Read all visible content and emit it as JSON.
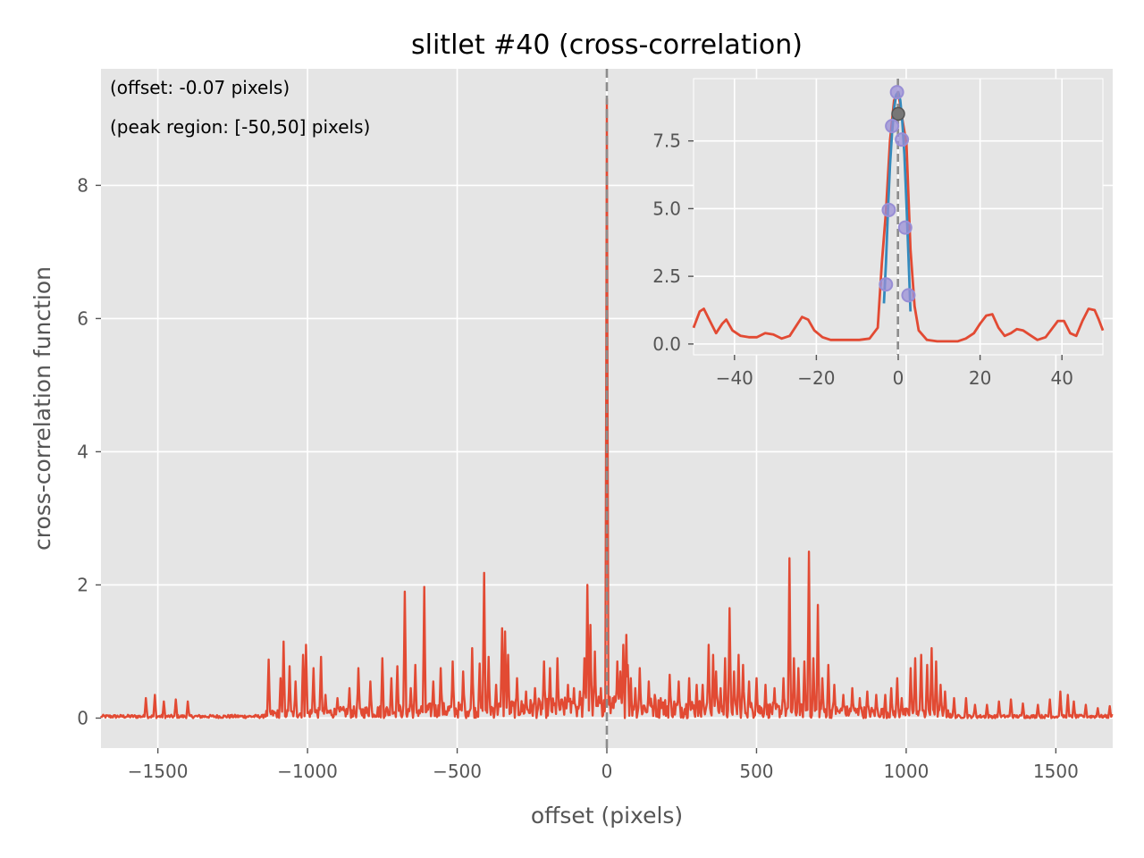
{
  "chart_data": [
    {
      "type": "line",
      "title": "slitlet #40 (cross-correlation)",
      "xlabel": "offset (pixels)",
      "ylabel": "cross-correlation function",
      "xlim": [
        -1690,
        1690
      ],
      "ylim": [
        -0.45,
        9.75
      ],
      "xticks": [
        -1500,
        -1000,
        -500,
        0,
        500,
        1000,
        1500
      ],
      "xtick_labels": [
        "−1500",
        "−1000",
        "−500",
        "0",
        "500",
        "1000",
        "1500"
      ],
      "yticks": [
        0,
        2,
        4,
        6,
        8
      ],
      "ytick_labels": [
        "0",
        "2",
        "4",
        "6",
        "8"
      ],
      "grid": true,
      "annotations": [
        "(offset: -0.07 pixels)",
        "(peak region: [-50,50] pixels)"
      ],
      "vline_x": -0.07,
      "colors": {
        "series": "#e24a33",
        "vline": "#8c8c8c",
        "background": "#e5e5e5",
        "grid": "#ffffff"
      },
      "peak": {
        "x": 0,
        "y": 9.3
      },
      "spikes": [
        [
          -1540,
          0.3
        ],
        [
          -1510,
          0.35
        ],
        [
          -1480,
          0.25
        ],
        [
          -1440,
          0.28
        ],
        [
          -1400,
          0.25
        ],
        [
          -1130,
          0.88
        ],
        [
          -1090,
          0.6
        ],
        [
          -1080,
          1.15
        ],
        [
          -1060,
          0.78
        ],
        [
          -1040,
          0.55
        ],
        [
          -1015,
          0.95
        ],
        [
          -1005,
          1.1
        ],
        [
          -980,
          0.75
        ],
        [
          -955,
          0.92
        ],
        [
          -940,
          0.35
        ],
        [
          -900,
          0.3
        ],
        [
          -860,
          0.45
        ],
        [
          -830,
          0.75
        ],
        [
          -790,
          0.55
        ],
        [
          -750,
          0.9
        ],
        [
          -720,
          0.6
        ],
        [
          -700,
          0.78
        ],
        [
          -675,
          1.9
        ],
        [
          -655,
          0.45
        ],
        [
          -640,
          0.8
        ],
        [
          -610,
          1.97
        ],
        [
          -580,
          0.55
        ],
        [
          -555,
          0.75
        ],
        [
          -515,
          0.85
        ],
        [
          -480,
          0.7
        ],
        [
          -450,
          1.05
        ],
        [
          -425,
          0.82
        ],
        [
          -410,
          2.18
        ],
        [
          -395,
          0.92
        ],
        [
          -370,
          0.5
        ],
        [
          -350,
          1.35
        ],
        [
          -340,
          1.3
        ],
        [
          -330,
          0.95
        ],
        [
          -300,
          0.6
        ],
        [
          -270,
          0.4
        ],
        [
          -240,
          0.45
        ],
        [
          -210,
          0.85
        ],
        [
          -190,
          0.75
        ],
        [
          -165,
          0.9
        ],
        [
          -130,
          0.5
        ],
        [
          -110,
          0.45
        ],
        [
          -90,
          0.4
        ],
        [
          -75,
          0.9
        ],
        [
          -65,
          2.0
        ],
        [
          -55,
          1.4
        ],
        [
          -40,
          1.0
        ],
        [
          -20,
          0.45
        ],
        [
          20,
          0.3
        ],
        [
          35,
          0.85
        ],
        [
          45,
          0.7
        ],
        [
          55,
          1.1
        ],
        [
          65,
          1.25
        ],
        [
          70,
          0.8
        ],
        [
          80,
          0.6
        ],
        [
          95,
          0.45
        ],
        [
          110,
          0.75
        ],
        [
          140,
          0.55
        ],
        [
          160,
          0.35
        ],
        [
          180,
          0.3
        ],
        [
          210,
          0.65
        ],
        [
          240,
          0.55
        ],
        [
          275,
          0.6
        ],
        [
          300,
          0.5
        ],
        [
          320,
          0.5
        ],
        [
          340,
          1.1
        ],
        [
          355,
          0.95
        ],
        [
          365,
          0.7
        ],
        [
          380,
          0.45
        ],
        [
          395,
          0.9
        ],
        [
          410,
          1.65
        ],
        [
          425,
          0.7
        ],
        [
          440,
          0.95
        ],
        [
          455,
          0.8
        ],
        [
          475,
          0.55
        ],
        [
          500,
          0.6
        ],
        [
          530,
          0.5
        ],
        [
          560,
          0.45
        ],
        [
          590,
          0.6
        ],
        [
          610,
          2.4
        ],
        [
          625,
          0.9
        ],
        [
          640,
          0.75
        ],
        [
          660,
          0.85
        ],
        [
          675,
          2.5
        ],
        [
          690,
          0.9
        ],
        [
          705,
          1.7
        ],
        [
          720,
          0.6
        ],
        [
          740,
          0.8
        ],
        [
          760,
          0.5
        ],
        [
          790,
          0.35
        ],
        [
          820,
          0.45
        ],
        [
          845,
          0.3
        ],
        [
          870,
          0.4
        ],
        [
          900,
          0.35
        ],
        [
          930,
          0.35
        ],
        [
          950,
          0.45
        ],
        [
          970,
          0.6
        ],
        [
          985,
          0.3
        ],
        [
          1015,
          0.75
        ],
        [
          1030,
          0.9
        ],
        [
          1050,
          0.95
        ],
        [
          1070,
          0.8
        ],
        [
          1085,
          1.05
        ],
        [
          1100,
          0.85
        ],
        [
          1115,
          0.5
        ],
        [
          1130,
          0.4
        ],
        [
          1160,
          0.3
        ],
        [
          1200,
          0.3
        ],
        [
          1230,
          0.2
        ],
        [
          1270,
          0.2
        ],
        [
          1310,
          0.25
        ],
        [
          1350,
          0.28
        ],
        [
          1390,
          0.22
        ],
        [
          1440,
          0.2
        ],
        [
          1480,
          0.28
        ],
        [
          1515,
          0.4
        ],
        [
          1540,
          0.35
        ],
        [
          1560,
          0.25
        ],
        [
          1600,
          0.2
        ],
        [
          1640,
          0.15
        ],
        [
          1680,
          0.18
        ]
      ]
    },
    {
      "type": "line",
      "inset": true,
      "xlim": [
        -50,
        50
      ],
      "ylim": [
        -0.4,
        9.8
      ],
      "xticks": [
        -40,
        -20,
        0,
        20,
        40
      ],
      "xtick_labels": [
        "−40",
        "−20",
        "0",
        "20",
        "40"
      ],
      "yticks": [
        0.0,
        2.5,
        5.0,
        7.5
      ],
      "ytick_labels": [
        "0.0",
        "2.5",
        "5.0",
        "7.5"
      ],
      "grid": true,
      "vline_x": -0.07,
      "colors": {
        "series": "#e24a33",
        "fit": "#348abd",
        "markers": "#988ed5",
        "peak_marker": "#777777",
        "vline": "#8c8c8c"
      },
      "series": [
        {
          "name": "cross-correlation",
          "x": [
            -50,
            -48.5,
            -47.5,
            -46,
            -44.5,
            -43,
            -42,
            -40.5,
            -38.5,
            -36.5,
            -34.5,
            -32.5,
            -30.5,
            -28.5,
            -26.5,
            -25,
            -23.5,
            -22,
            -20.5,
            -18.5,
            -16.5,
            -14.5,
            -12,
            -9.5,
            -7,
            -5,
            -4,
            -3,
            -2,
            -1,
            0,
            1,
            2,
            3,
            4,
            5,
            7,
            9.5,
            12,
            14.5,
            16.5,
            18.5,
            20,
            21.5,
            23,
            24.5,
            26,
            27.5,
            29,
            30.5,
            32,
            34,
            36,
            37.5,
            39,
            40.5,
            42,
            43.5,
            45,
            46.5,
            48,
            49,
            50
          ],
          "y": [
            0.6,
            1.2,
            1.3,
            0.85,
            0.4,
            0.75,
            0.9,
            0.5,
            0.3,
            0.25,
            0.25,
            0.4,
            0.35,
            0.2,
            0.3,
            0.65,
            1.0,
            0.9,
            0.5,
            0.25,
            0.15,
            0.15,
            0.15,
            0.15,
            0.2,
            0.6,
            3.0,
            4.9,
            7.5,
            9.0,
            9.3,
            8.3,
            7.4,
            3.5,
            1.4,
            0.5,
            0.15,
            0.1,
            0.1,
            0.1,
            0.2,
            0.4,
            0.75,
            1.05,
            1.1,
            0.6,
            0.3,
            0.4,
            0.55,
            0.5,
            0.35,
            0.15,
            0.25,
            0.55,
            0.85,
            0.85,
            0.4,
            0.3,
            0.85,
            1.3,
            1.25,
            0.9,
            0.5
          ]
        },
        {
          "name": "fit",
          "x": [
            -3.5,
            -3,
            -2.5,
            -2,
            -1.5,
            -1,
            -0.5,
            0,
            0.5,
            1,
            1.5,
            2,
            2.5,
            3
          ],
          "y": [
            1.5,
            3.0,
            4.9,
            6.6,
            7.8,
            8.7,
            9.2,
            9.3,
            9.0,
            8.2,
            7.0,
            5.2,
            3.2,
            1.2
          ]
        },
        {
          "name": "points",
          "x": [
            -3,
            -2.3,
            -1.5,
            -0.3,
            0.9,
            1.7,
            2.5
          ],
          "y": [
            2.2,
            4.95,
            8.05,
            9.3,
            7.55,
            4.3,
            1.8
          ]
        },
        {
          "name": "peak",
          "x": [
            0
          ],
          "y": [
            8.5
          ]
        }
      ]
    }
  ]
}
